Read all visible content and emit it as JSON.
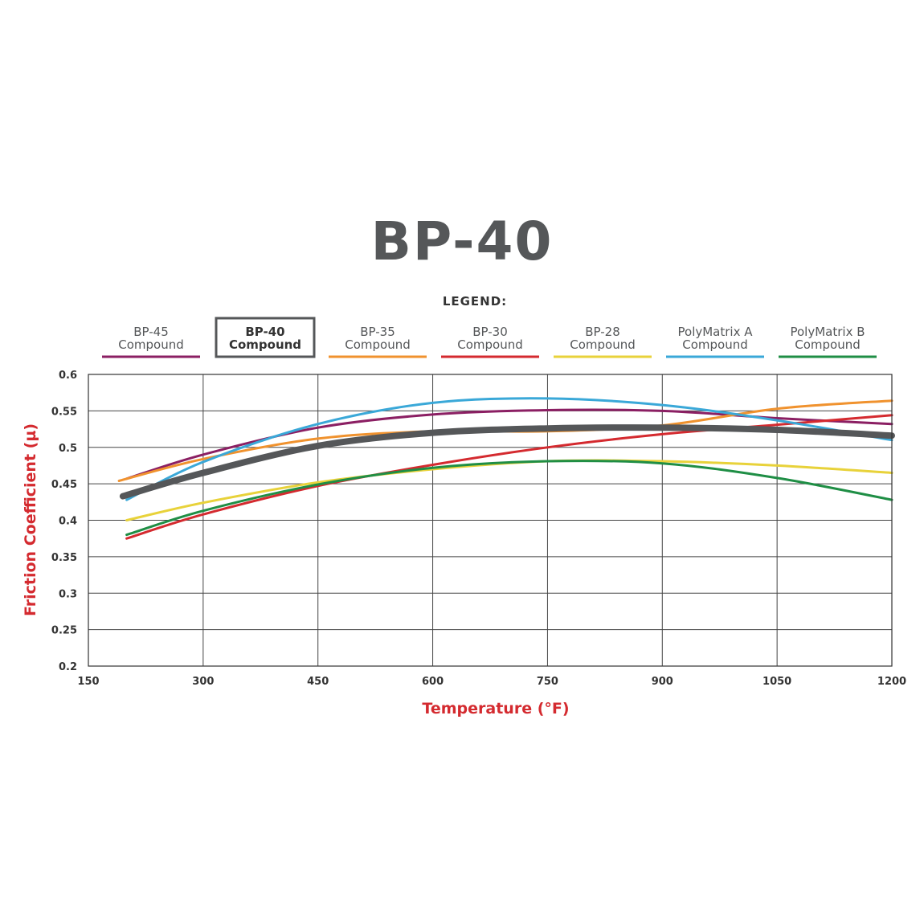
{
  "chart_data": {
    "type": "line",
    "title": "BP-40",
    "legend_title": "LEGEND:",
    "xlabel": "Temperature (°F)",
    "ylabel": "Friction Coefficient (µ)",
    "xlim": [
      150,
      1200
    ],
    "ylim": [
      0.2,
      0.6
    ],
    "x_ticks": [
      150,
      300,
      450,
      600,
      750,
      900,
      1050,
      1200
    ],
    "x_tick_labels": [
      "150",
      "300",
      "450",
      "600",
      "750",
      "900",
      "1050",
      "1200"
    ],
    "y_ticks": [
      0.2,
      0.25,
      0.3,
      0.35,
      0.4,
      0.45,
      0.5,
      0.55,
      0.6
    ],
    "y_tick_labels": [
      "0.2",
      "0.25",
      "0.3",
      "0.35",
      "0.4",
      "0.45",
      "0.5",
      "0.55",
      "0.6"
    ],
    "grid": true,
    "legend_position": "top",
    "series": [
      {
        "name": "BP-45",
        "name_line2": "Compound",
        "color": "#8B1F63",
        "highlight": false,
        "x": [
          200,
          300,
          450,
          600,
          750,
          900,
          1050,
          1200
        ],
        "y": [
          0.457,
          0.49,
          0.527,
          0.545,
          0.551,
          0.55,
          0.54,
          0.532
        ]
      },
      {
        "name": "BP-40",
        "name_line2": "Compound",
        "color": "#555759",
        "highlight": true,
        "x": [
          195,
          300,
          450,
          600,
          750,
          900,
          1050,
          1200
        ],
        "y": [
          0.433,
          0.465,
          0.502,
          0.52,
          0.526,
          0.527,
          0.524,
          0.516
        ]
      },
      {
        "name": "BP-35",
        "name_line2": "Compound",
        "color": "#F0922E",
        "highlight": false,
        "x": [
          190,
          300,
          450,
          600,
          750,
          900,
          1050,
          1200
        ],
        "y": [
          0.454,
          0.484,
          0.512,
          0.522,
          0.522,
          0.53,
          0.553,
          0.564
        ]
      },
      {
        "name": "BP-30",
        "name_line2": "Compound",
        "color": "#D42A2F",
        "highlight": false,
        "x": [
          200,
          300,
          450,
          600,
          750,
          900,
          1050,
          1200
        ],
        "y": [
          0.375,
          0.408,
          0.447,
          0.476,
          0.5,
          0.518,
          0.531,
          0.544
        ]
      },
      {
        "name": "BP-28",
        "name_line2": "Compound",
        "color": "#E8D23A",
        "highlight": false,
        "x": [
          200,
          300,
          450,
          600,
          750,
          900,
          1050,
          1200
        ],
        "y": [
          0.4,
          0.424,
          0.452,
          0.47,
          0.481,
          0.481,
          0.475,
          0.465
        ]
      },
      {
        "name": "PolyMatrix A",
        "name_line2": "Compound",
        "color": "#3AA8D8",
        "highlight": false,
        "x": [
          200,
          300,
          450,
          600,
          750,
          900,
          1050,
          1200
        ],
        "y": [
          0.428,
          0.48,
          0.532,
          0.561,
          0.567,
          0.558,
          0.537,
          0.51
        ]
      },
      {
        "name": "PolyMatrix B",
        "name_line2": "Compound",
        "color": "#1F8E45",
        "highlight": false,
        "x": [
          200,
          300,
          450,
          600,
          750,
          900,
          1050,
          1200
        ],
        "y": [
          0.38,
          0.413,
          0.449,
          0.472,
          0.481,
          0.478,
          0.458,
          0.428
        ]
      }
    ]
  }
}
